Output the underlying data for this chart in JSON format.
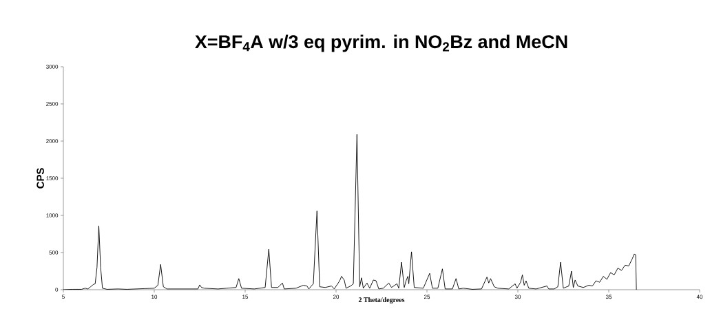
{
  "chart_data": {
    "type": "line",
    "title": "X=BF$_{4}$A w/3 eq pyrim. in NO$_{2}$Bz and MeCN",
    "xlabel": "2 Theta/degrees",
    "ylabel": "CPS",
    "xlim": [
      5,
      40
    ],
    "ylim": [
      0,
      3000
    ],
    "xticks": [
      5,
      10,
      15,
      20,
      25,
      30,
      35,
      40
    ],
    "yticks": [
      0,
      500,
      1000,
      1500,
      2000,
      2500,
      3000
    ],
    "series": [
      {
        "color": "#000000",
        "x": [
          5.0,
          5.5,
          6.0,
          6.2,
          6.35,
          6.5,
          6.65,
          6.75,
          6.85,
          6.95,
          7.05,
          7.15,
          7.4,
          8,
          8.5,
          9,
          9.5,
          10.0,
          10.2,
          10.35,
          10.5,
          10.7,
          11.5,
          12.4,
          12.5,
          12.6,
          12.75,
          13.5,
          14.0,
          14.5,
          14.65,
          14.8,
          15.5,
          16.1,
          16.3,
          16.45,
          16.8,
          17.05,
          17.15,
          17.8,
          18.2,
          18.4,
          18.5,
          18.75,
          18.95,
          19.1,
          19.4,
          19.75,
          19.9,
          20.2,
          20.3,
          20.45,
          20.55,
          20.8,
          20.95,
          21.15,
          21.3,
          21.4,
          21.5,
          21.7,
          21.85,
          22.05,
          22.2,
          22.35,
          22.6,
          22.9,
          23.05,
          23.35,
          23.45,
          23.6,
          23.75,
          23.85,
          23.95,
          24.0,
          24.15,
          24.3,
          24.8,
          25.15,
          25.3,
          25.6,
          25.85,
          26.0,
          26.4,
          26.6,
          26.75,
          27.0,
          27.5,
          28.0,
          28.3,
          28.4,
          28.5,
          28.7,
          28.9,
          29.5,
          29.85,
          29.95,
          30.15,
          30.25,
          30.35,
          30.45,
          30.6,
          31.0,
          31.6,
          31.7,
          32.0,
          32.2,
          32.35,
          32.5,
          32.8,
          32.95,
          33.05,
          33.15,
          33.3,
          33.6,
          33.9,
          34.1,
          34.3,
          34.5,
          34.7,
          34.9,
          35.1,
          35.3,
          35.5,
          35.7,
          35.9,
          36.1,
          36.3,
          36.4,
          36.48,
          36.52
        ],
        "values": [
          0,
          5,
          5,
          20,
          10,
          40,
          70,
          80,
          300,
          860,
          300,
          20,
          5,
          10,
          5,
          10,
          15,
          20,
          60,
          340,
          40,
          10,
          10,
          10,
          65,
          30,
          20,
          10,
          20,
          30,
          150,
          20,
          10,
          30,
          545,
          30,
          30,
          90,
          10,
          20,
          60,
          50,
          10,
          80,
          1060,
          40,
          30,
          50,
          10,
          120,
          180,
          130,
          20,
          50,
          80,
          2090,
          40,
          160,
          20,
          90,
          20,
          130,
          120,
          10,
          20,
          90,
          30,
          80,
          20,
          370,
          30,
          120,
          180,
          80,
          510,
          30,
          20,
          220,
          20,
          20,
          280,
          10,
          10,
          150,
          10,
          20,
          5,
          10,
          170,
          90,
          150,
          40,
          20,
          10,
          80,
          20,
          100,
          200,
          60,
          120,
          20,
          10,
          50,
          10,
          10,
          40,
          370,
          20,
          50,
          250,
          30,
          130,
          50,
          30,
          60,
          50,
          120,
          100,
          180,
          140,
          230,
          200,
          290,
          260,
          330,
          320,
          420,
          480,
          470,
          0
        ]
      }
    ]
  }
}
